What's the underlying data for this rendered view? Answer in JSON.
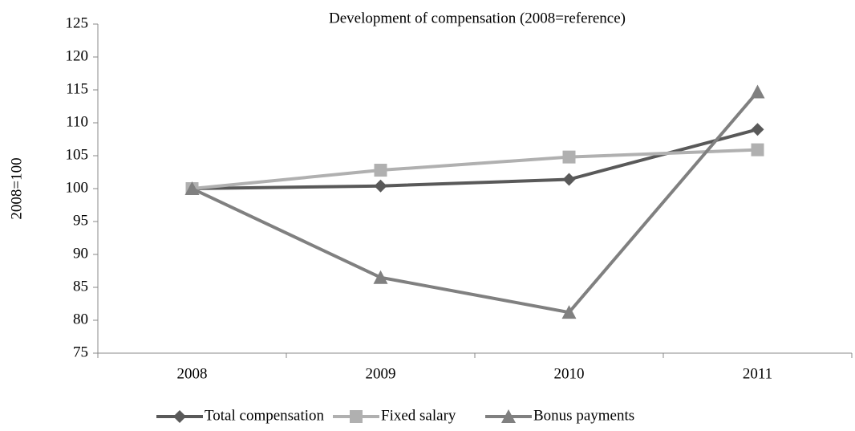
{
  "chart_data": {
    "type": "line",
    "title": "Development of compensation (2008=reference)",
    "ylabel": "2008=100",
    "categories": [
      "2008",
      "2009",
      "2010",
      "2011"
    ],
    "series": [
      {
        "name": "Total compensation",
        "color": "#595959",
        "marker": "diamond",
        "values": [
          100,
          100.4,
          101.4,
          109
        ]
      },
      {
        "name": "Fixed salary",
        "color": "#b0b0b0",
        "marker": "square",
        "values": [
          100,
          102.8,
          104.8,
          105.9
        ]
      },
      {
        "name": "Bonus payments",
        "color": "#808080",
        "marker": "triangle",
        "values": [
          100,
          86.5,
          81.2,
          114.7
        ]
      }
    ],
    "ylim": [
      75,
      125
    ],
    "yticks": [
      75,
      80,
      85,
      90,
      95,
      100,
      105,
      110,
      115,
      120,
      125
    ],
    "grid": false,
    "legend": "bottom"
  }
}
